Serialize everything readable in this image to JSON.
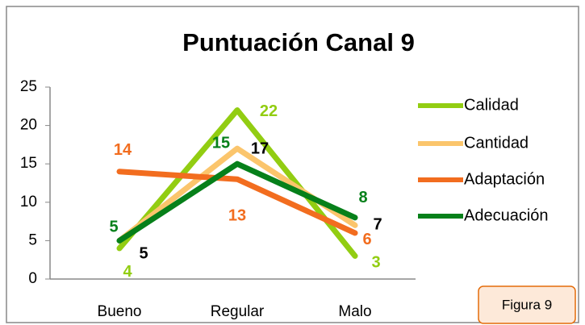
{
  "chart_data": {
    "type": "line",
    "title": "Puntuación Canal 9",
    "categories": [
      "Bueno",
      "Regular",
      "Malo"
    ],
    "series": [
      {
        "name": "Calidad",
        "color": "#92cd12",
        "label_color": "#92cd12",
        "values": [
          4,
          22,
          3
        ]
      },
      {
        "name": "Cantidad",
        "color": "#fbc56c",
        "label_color": "#000000",
        "values": [
          5,
          17,
          7
        ]
      },
      {
        "name": "Adaptación",
        "color": "#f26d1f",
        "label_color": "#f26d1f",
        "values": [
          14,
          13,
          6
        ]
      },
      {
        "name": "Adecuación",
        "color": "#06801a",
        "label_color": "#06801a",
        "values": [
          5,
          15,
          8
        ]
      }
    ],
    "ylim": [
      0,
      25
    ],
    "yticks": [
      0,
      5,
      10,
      15,
      20,
      25
    ],
    "grid": false,
    "legend": "right",
    "annotation": "Figura 9"
  }
}
